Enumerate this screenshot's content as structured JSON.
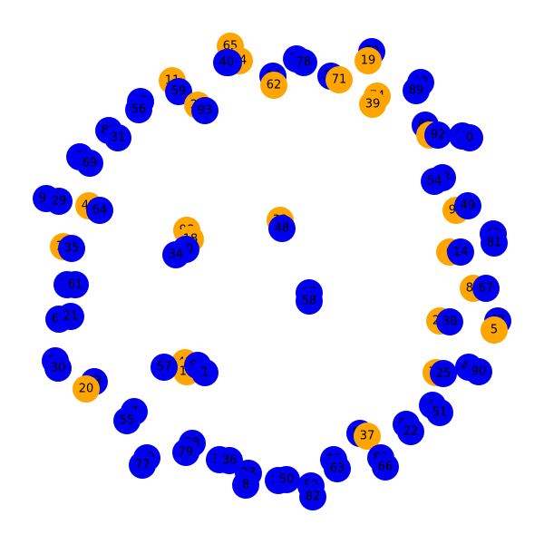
{
  "diagram": {
    "type": "network-graph",
    "colors": {
      "blue": "#0000ee",
      "orange": "#ffa500",
      "label": "#000000",
      "background": "#ffffff"
    },
    "nodes": [
      {
        "id": "65",
        "color": "orange"
      },
      {
        "id": "94",
        "color": "orange"
      },
      {
        "id": "44",
        "color": "blue"
      },
      {
        "id": "40",
        "color": "blue"
      },
      {
        "id": "17",
        "color": "blue"
      },
      {
        "id": "78",
        "color": "blue"
      },
      {
        "id": "16",
        "color": "blue"
      },
      {
        "id": "62",
        "color": "orange"
      },
      {
        "id": "26",
        "color": "blue"
      },
      {
        "id": "71",
        "color": "orange"
      },
      {
        "id": "72",
        "color": "blue"
      },
      {
        "id": "19",
        "color": "orange"
      },
      {
        "id": "11",
        "color": "orange"
      },
      {
        "id": "59",
        "color": "blue"
      },
      {
        "id": "27",
        "color": "orange"
      },
      {
        "id": "93",
        "color": "blue"
      },
      {
        "id": "74",
        "color": "orange"
      },
      {
        "id": "39",
        "color": "orange"
      },
      {
        "id": "32",
        "color": "blue"
      },
      {
        "id": "89",
        "color": "blue"
      },
      {
        "id": "45",
        "color": "blue"
      },
      {
        "id": "56",
        "color": "blue"
      },
      {
        "id": "88",
        "color": "blue"
      },
      {
        "id": "31",
        "color": "blue"
      },
      {
        "id": "87",
        "color": "blue"
      },
      {
        "id": "2",
        "color": "orange"
      },
      {
        "id": "92",
        "color": "blue"
      },
      {
        "id": "76",
        "color": "blue"
      },
      {
        "id": "0",
        "color": "blue"
      },
      {
        "id": "7",
        "color": "blue"
      },
      {
        "id": "69",
        "color": "blue"
      },
      {
        "id": "83",
        "color": "blue"
      },
      {
        "id": "54",
        "color": "blue"
      },
      {
        "id": "91",
        "color": "blue"
      },
      {
        "id": "29",
        "color": "blue"
      },
      {
        "id": "43",
        "color": "orange"
      },
      {
        "id": "64",
        "color": "blue"
      },
      {
        "id": "96",
        "color": "orange"
      },
      {
        "id": "49",
        "color": "blue"
      },
      {
        "id": "33",
        "color": "orange"
      },
      {
        "id": "48",
        "color": "blue"
      },
      {
        "id": "98",
        "color": "orange"
      },
      {
        "id": "18",
        "color": "orange"
      },
      {
        "id": "60",
        "color": "blue"
      },
      {
        "id": "34",
        "color": "blue"
      },
      {
        "id": "42",
        "color": "blue"
      },
      {
        "id": "81",
        "color": "blue"
      },
      {
        "id": "12",
        "color": "orange"
      },
      {
        "id": "35",
        "color": "blue"
      },
      {
        "id": "6",
        "color": "orange"
      },
      {
        "id": "14",
        "color": "blue"
      },
      {
        "id": "75",
        "color": "blue"
      },
      {
        "id": "61",
        "color": "blue"
      },
      {
        "id": "86",
        "color": "orange"
      },
      {
        "id": "67",
        "color": "blue"
      },
      {
        "id": "97",
        "color": "blue"
      },
      {
        "id": "58",
        "color": "blue"
      },
      {
        "id": "68",
        "color": "blue"
      },
      {
        "id": "21",
        "color": "blue"
      },
      {
        "id": "24",
        "color": "orange"
      },
      {
        "id": "38",
        "color": "blue"
      },
      {
        "id": "47",
        "color": "blue"
      },
      {
        "id": "5",
        "color": "orange"
      },
      {
        "id": "84",
        "color": "blue"
      },
      {
        "id": "30",
        "color": "blue"
      },
      {
        "id": "41",
        "color": "orange"
      },
      {
        "id": "15",
        "color": "orange"
      },
      {
        "id": "57",
        "color": "blue"
      },
      {
        "id": "99",
        "color": "blue"
      },
      {
        "id": "1",
        "color": "blue"
      },
      {
        "id": "70",
        "color": "orange"
      },
      {
        "id": "25",
        "color": "blue"
      },
      {
        "id": "46",
        "color": "blue"
      },
      {
        "id": "90",
        "color": "blue"
      },
      {
        "id": "73",
        "color": "blue"
      },
      {
        "id": "20",
        "color": "orange"
      },
      {
        "id": "9",
        "color": "blue"
      },
      {
        "id": "51",
        "color": "blue"
      },
      {
        "id": "3",
        "color": "blue"
      },
      {
        "id": "55",
        "color": "blue"
      },
      {
        "id": "53",
        "color": "blue"
      },
      {
        "id": "22",
        "color": "blue"
      },
      {
        "id": "95",
        "color": "blue"
      },
      {
        "id": "37",
        "color": "orange"
      },
      {
        "id": "28",
        "color": "blue"
      },
      {
        "id": "79",
        "color": "blue"
      },
      {
        "id": "10",
        "color": "blue"
      },
      {
        "id": "77",
        "color": "blue"
      },
      {
        "id": "32b",
        "label": "32",
        "color": "blue"
      },
      {
        "id": "36",
        "color": "blue"
      },
      {
        "id": "23",
        "color": "blue"
      },
      {
        "id": "8",
        "color": "blue"
      },
      {
        "id": "13",
        "color": "blue"
      },
      {
        "id": "50",
        "color": "blue"
      },
      {
        "id": "36b",
        "label": "36",
        "color": "blue"
      },
      {
        "id": "63",
        "color": "blue"
      },
      {
        "id": "80",
        "color": "blue"
      },
      {
        "id": "66",
        "color": "blue"
      },
      {
        "id": "52",
        "color": "blue"
      },
      {
        "id": "82",
        "color": "blue"
      }
    ]
  }
}
